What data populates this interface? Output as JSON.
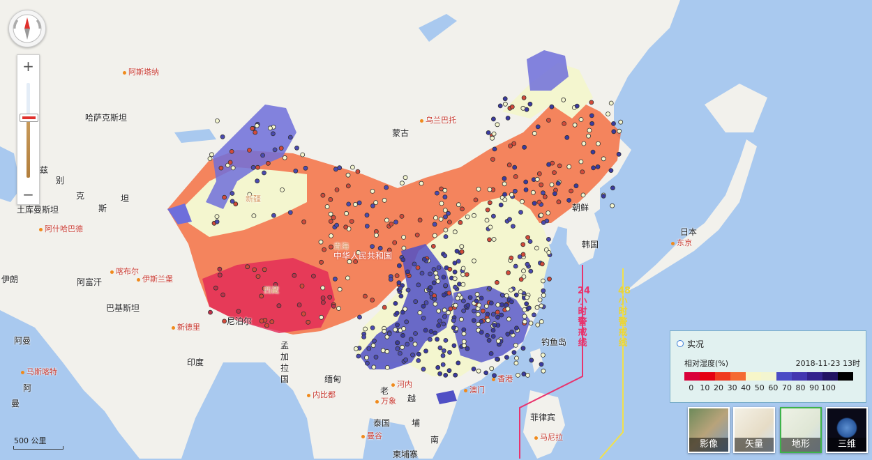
{
  "countries": [
    {
      "id": "kazakhstan",
      "text": "哈萨克斯坦"
    },
    {
      "id": "mongolia",
      "text": "蒙古"
    },
    {
      "id": "china",
      "text": "中华人民共和国"
    },
    {
      "id": "korea",
      "text": "朝鲜"
    },
    {
      "id": "south-korea",
      "text": "韩国"
    },
    {
      "id": "japan",
      "text": "日本"
    },
    {
      "id": "turkmenistan",
      "text": "土库曼斯坦"
    },
    {
      "id": "afghanistan",
      "text": "阿富汗"
    },
    {
      "id": "pakistan",
      "text": "巴基斯坦"
    },
    {
      "id": "iran",
      "text": "伊朗"
    },
    {
      "id": "nepal",
      "text": "尼泊尔"
    },
    {
      "id": "india",
      "text": "印度"
    },
    {
      "id": "bangladesh",
      "text": "孟加拉国"
    },
    {
      "id": "myanmar",
      "text": "缅甸"
    },
    {
      "id": "laos",
      "text": "老"
    },
    {
      "id": "vietnam",
      "text": "越"
    },
    {
      "id": "thailand",
      "text": "泰国"
    },
    {
      "id": "cambodia",
      "text": "柬埔寨"
    },
    {
      "id": "philippines",
      "text": "菲律宾"
    },
    {
      "id": "uzbekistan-part",
      "text": "兹"
    },
    {
      "id": "uzbekistan-part2",
      "text": "别"
    },
    {
      "id": "kyrgyz-part",
      "text": "克"
    },
    {
      "id": "kyrgyz-part2",
      "text": "斯"
    },
    {
      "id": "tajik-part",
      "text": "坦"
    },
    {
      "id": "oman",
      "text": "阿曼"
    },
    {
      "id": "cambodia-part",
      "text": "埔"
    },
    {
      "id": "south-part",
      "text": "南"
    },
    {
      "id": "edge-a",
      "text": "阿"
    },
    {
      "id": "edge-b",
      "text": "曼"
    },
    {
      "id": "diaoyu",
      "text": "钓鱼岛"
    }
  ],
  "cities": [
    {
      "id": "astana",
      "text": "阿斯塔纳"
    },
    {
      "id": "ulaanbaatar",
      "text": "乌兰巴托"
    },
    {
      "id": "ashgabat",
      "text": "阿什哈巴德"
    },
    {
      "id": "kabul",
      "text": "喀布尔"
    },
    {
      "id": "islamabad",
      "text": "伊斯兰堡"
    },
    {
      "id": "new-delhi",
      "text": "新德里"
    },
    {
      "id": "muscat",
      "text": "马斯喀特"
    },
    {
      "id": "naypyidaw",
      "text": "内比都"
    },
    {
      "id": "vientiane",
      "text": "万象"
    },
    {
      "id": "hanoi",
      "text": "河内"
    },
    {
      "id": "bangkok",
      "text": "曼谷"
    },
    {
      "id": "manila",
      "text": "马尼拉"
    },
    {
      "id": "tokyo",
      "text": "东京"
    },
    {
      "id": "hongkong",
      "text": "香港"
    },
    {
      "id": "macau",
      "text": "澳门"
    }
  ],
  "provinces": [
    {
      "id": "xinjiang",
      "text": "新疆"
    },
    {
      "id": "xizang",
      "text": "西藏"
    },
    {
      "id": "qinghai",
      "text": "青海"
    }
  ],
  "warning_lines": [
    {
      "id": "warn-24",
      "text": "24小时警戒线",
      "color": "#e8336d"
    },
    {
      "id": "warn-48",
      "text": "48小时警戒线",
      "color": "#f2e14a"
    }
  ],
  "legend": {
    "mode_label": "实况",
    "variable": "相对湿度(%)",
    "timestamp": "2018-11-23 13时",
    "colors": [
      "#d9003a",
      "#e50012",
      "#f0391f",
      "#f56a32",
      "#f7f6c9",
      "#f3f5d0",
      "#4b4bc5",
      "#4336b0",
      "#33228c",
      "#221362",
      "#000000"
    ],
    "ticks": [
      "0",
      "10",
      "20",
      "30",
      "40",
      "50",
      "60",
      "70",
      "80",
      "90",
      "100"
    ]
  },
  "layers": [
    {
      "id": "image",
      "label": "影像",
      "active": false
    },
    {
      "id": "vector",
      "label": "矢量",
      "active": false
    },
    {
      "id": "terrain",
      "label": "地形",
      "active": true
    },
    {
      "id": "3d",
      "label": "三维",
      "active": false
    }
  ],
  "zoom": {
    "plus": "+",
    "minus": "−",
    "level_fraction": 0.64
  },
  "scale": {
    "label": "500 公里"
  }
}
